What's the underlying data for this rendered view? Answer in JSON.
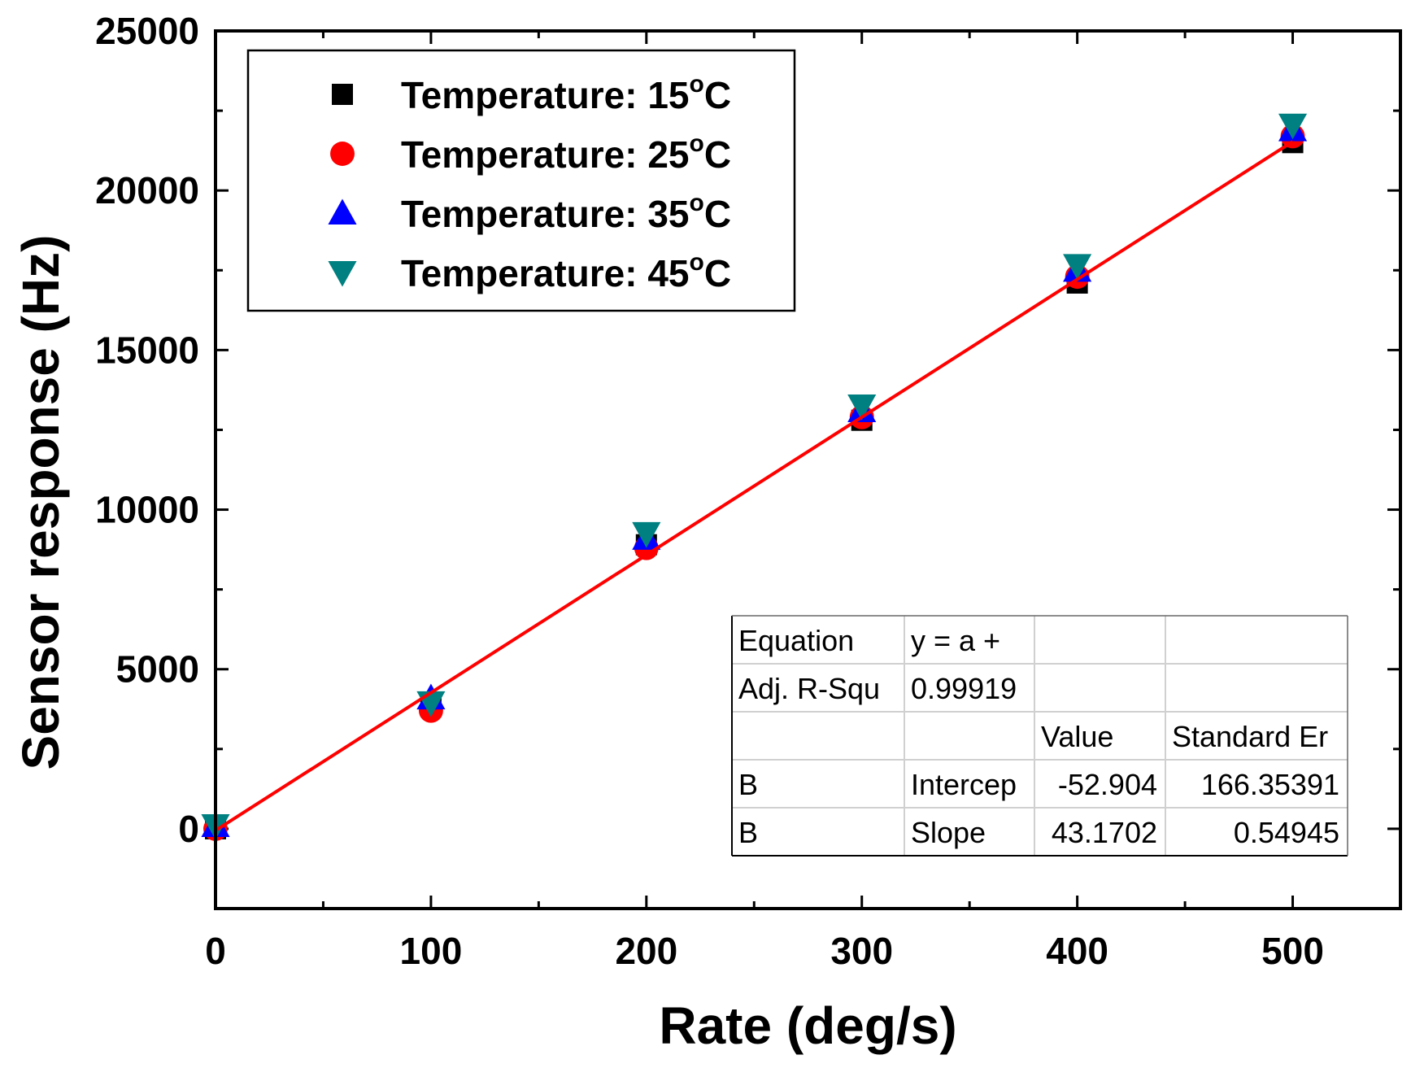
{
  "chart_data": {
    "type": "scatter",
    "xlabel": "Rate (deg/s)",
    "ylabel": "Sensor response (Hz)",
    "xlim": [
      0,
      550
    ],
    "ylim": [
      -2500,
      25000
    ],
    "x_ticks": [
      0,
      100,
      200,
      300,
      400,
      500
    ],
    "x_tick_labels": [
      "0",
      "100",
      "200",
      "300",
      "400",
      "500"
    ],
    "y_ticks": [
      0,
      5000,
      10000,
      15000,
      20000,
      25000
    ],
    "y_tick_labels": [
      "0",
      "5000",
      "10000",
      "15000",
      "20000",
      "25000"
    ],
    "legend_position": "top-left",
    "series": [
      {
        "name": "Temperature: 15",
        "unit": "°C",
        "marker": "square",
        "color": "#000000",
        "x": [
          0,
          100,
          200,
          300,
          400,
          500
        ],
        "y": [
          0,
          3900,
          8900,
          12800,
          17100,
          21500
        ]
      },
      {
        "name": "Temperature: 25",
        "unit": "°C",
        "marker": "circle",
        "color": "#ff0000",
        "x": [
          0,
          100,
          200,
          300,
          400,
          500
        ],
        "y": [
          0,
          3700,
          8800,
          12900,
          17300,
          21700
        ]
      },
      {
        "name": "Temperature: 35",
        "unit": "°C",
        "marker": "triangle-up",
        "color": "#0000ff",
        "x": [
          0,
          100,
          200,
          300,
          400,
          500
        ],
        "y": [
          100,
          4100,
          9100,
          13100,
          17500,
          21900
        ]
      },
      {
        "name": "Temperature: 45",
        "unit": "°C",
        "marker": "triangle-down",
        "color": "#008080",
        "x": [
          0,
          100,
          200,
          300,
          400,
          500
        ],
        "y": [
          100,
          3950,
          9250,
          13250,
          17650,
          22050
        ]
      }
    ],
    "fit_line": {
      "color": "#ff0000",
      "intercept": -52.904,
      "slope": 43.1702,
      "x_range": [
        0,
        500
      ]
    },
    "fit_table": {
      "rows": [
        [
          "Equation",
          "y = a +",
          "",
          ""
        ],
        [
          "Adj. R-Squ",
          "0.99919",
          "",
          ""
        ],
        [
          "",
          "",
          "Value",
          "Standard Er"
        ],
        [
          "B",
          "Intercep",
          "-52.904",
          "166.35391"
        ],
        [
          "B",
          "Slope",
          "43.1702",
          "0.54945"
        ]
      ]
    }
  }
}
